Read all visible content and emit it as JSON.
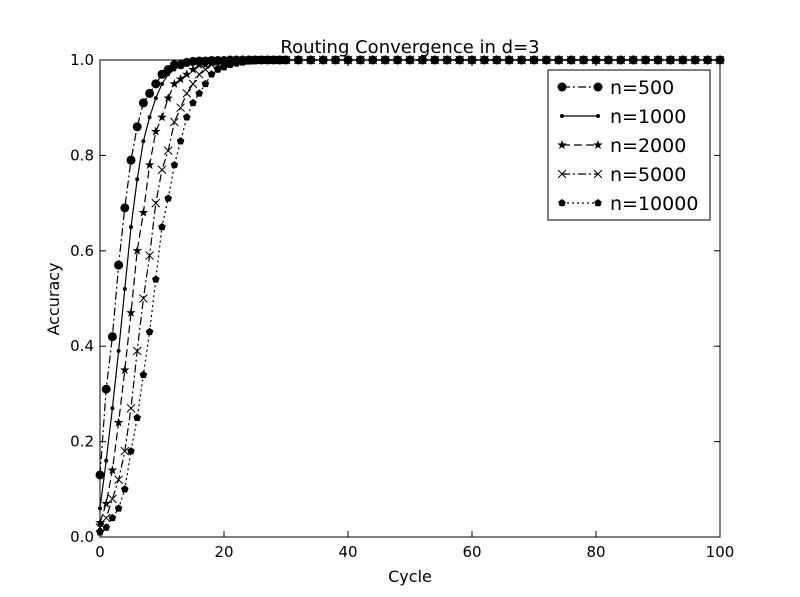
{
  "chart_data": {
    "type": "line",
    "title": "Routing Convergence in d=3",
    "xlabel": "Cycle",
    "ylabel": "Accuracy",
    "xlim": [
      0,
      100
    ],
    "ylim": [
      0.0,
      1.0
    ],
    "xticks": [
      "0",
      "20",
      "40",
      "60",
      "80",
      "100"
    ],
    "yticks": [
      "0.0",
      "0.2",
      "0.4",
      "0.6",
      "0.8",
      "1.0"
    ],
    "grid": false,
    "legend_position": "top-right",
    "series": [
      {
        "name": "n=500",
        "marker": "circle",
        "line_style": "dash-dot",
        "x": [
          0,
          1,
          2,
          3,
          4,
          5,
          6,
          7,
          8,
          9,
          10,
          11,
          12,
          13,
          14,
          15,
          16,
          17,
          18,
          19,
          20,
          21,
          22,
          23,
          24,
          25,
          26,
          27,
          28,
          29,
          30,
          32,
          34,
          36,
          38,
          40,
          42,
          44,
          46,
          48,
          50,
          52,
          54,
          56,
          58,
          60,
          62,
          64,
          66,
          68,
          70,
          72,
          74,
          76,
          78,
          80,
          82,
          84,
          86,
          88,
          90,
          92,
          94,
          96,
          98,
          100
        ],
        "y": [
          0.13,
          0.31,
          0.42,
          0.57,
          0.69,
          0.79,
          0.86,
          0.91,
          0.93,
          0.95,
          0.97,
          0.98,
          0.99,
          0.99,
          0.995,
          0.997,
          0.998,
          0.998,
          0.999,
          0.999,
          0.999,
          1.0,
          1.0,
          1.0,
          1.0,
          1.0,
          1.0,
          1.0,
          1.0,
          1.0,
          1.0,
          1.0,
          1.0,
          1.0,
          1.0,
          1.0,
          1.0,
          1.0,
          1.0,
          1.0,
          1.0,
          1.0,
          1.0,
          1.0,
          1.0,
          1.0,
          1.0,
          1.0,
          1.0,
          1.0,
          1.0,
          1.0,
          1.0,
          1.0,
          1.0,
          1.0,
          1.0,
          1.0,
          1.0,
          1.0,
          1.0,
          1.0,
          1.0,
          1.0,
          1.0,
          1.0
        ]
      },
      {
        "name": "n=1000",
        "marker": "point",
        "line_style": "solid",
        "x": [
          0,
          1,
          2,
          3,
          4,
          5,
          6,
          7,
          8,
          9,
          10,
          11,
          12,
          13,
          14,
          15,
          16,
          17,
          18,
          19,
          20,
          21,
          22,
          23,
          24,
          25,
          26,
          27,
          28,
          29,
          30,
          32,
          34,
          36,
          38,
          40,
          42,
          44,
          46,
          48,
          50,
          52,
          54,
          56,
          58,
          60,
          62,
          64,
          66,
          68,
          70,
          72,
          74,
          76,
          78,
          80,
          82,
          84,
          86,
          88,
          90,
          92,
          94,
          96,
          98,
          100
        ],
        "y": [
          0.06,
          0.16,
          0.27,
          0.39,
          0.52,
          0.65,
          0.75,
          0.83,
          0.88,
          0.92,
          0.95,
          0.97,
          0.98,
          0.99,
          0.99,
          0.995,
          0.997,
          0.998,
          0.999,
          0.999,
          1.0,
          1.0,
          1.0,
          1.0,
          1.0,
          1.0,
          1.0,
          1.0,
          1.0,
          1.0,
          1.0,
          1.0,
          1.0,
          1.0,
          1.0,
          1.0,
          1.0,
          1.0,
          1.0,
          1.0,
          1.0,
          1.0,
          1.0,
          1.0,
          1.0,
          1.0,
          1.0,
          1.0,
          1.0,
          1.0,
          1.0,
          1.0,
          1.0,
          1.0,
          1.0,
          1.0,
          1.0,
          1.0,
          1.0,
          1.0,
          1.0,
          1.0,
          1.0,
          1.0,
          1.0,
          1.0
        ]
      },
      {
        "name": "n=2000",
        "marker": "star",
        "line_style": "dashed",
        "x": [
          0,
          1,
          2,
          3,
          4,
          5,
          6,
          7,
          8,
          9,
          10,
          11,
          12,
          13,
          14,
          15,
          16,
          17,
          18,
          19,
          20,
          21,
          22,
          23,
          24,
          25,
          26,
          27,
          28,
          29,
          30,
          32,
          34,
          36,
          38,
          40,
          42,
          44,
          46,
          48,
          50,
          52,
          54,
          56,
          58,
          60,
          62,
          64,
          66,
          68,
          70,
          72,
          74,
          76,
          78,
          80,
          82,
          84,
          86,
          88,
          90,
          92,
          94,
          96,
          98,
          100
        ],
        "y": [
          0.03,
          0.07,
          0.14,
          0.24,
          0.35,
          0.47,
          0.6,
          0.68,
          0.78,
          0.85,
          0.88,
          0.92,
          0.95,
          0.96,
          0.97,
          0.98,
          0.99,
          0.99,
          0.995,
          0.997,
          0.998,
          0.999,
          0.999,
          1.0,
          1.0,
          1.0,
          1.0,
          1.0,
          1.0,
          1.0,
          1.0,
          1.0,
          1.0,
          1.0,
          1.0,
          1.0,
          1.0,
          1.0,
          1.0,
          1.0,
          1.0,
          1.0,
          1.0,
          1.0,
          1.0,
          1.0,
          1.0,
          1.0,
          1.0,
          1.0,
          1.0,
          1.0,
          1.0,
          1.0,
          1.0,
          1.0,
          1.0,
          1.0,
          1.0,
          1.0,
          1.0,
          1.0,
          1.0,
          1.0,
          1.0,
          1.0
        ]
      },
      {
        "name": "n=5000",
        "marker": "x",
        "line_style": "dash-dot",
        "x": [
          0,
          1,
          2,
          3,
          4,
          5,
          6,
          7,
          8,
          9,
          10,
          11,
          12,
          13,
          14,
          15,
          16,
          17,
          18,
          19,
          20,
          21,
          22,
          23,
          24,
          25,
          26,
          27,
          28,
          29,
          30,
          32,
          34,
          36,
          38,
          40,
          42,
          44,
          46,
          48,
          50,
          52,
          54,
          56,
          58,
          60,
          62,
          64,
          66,
          68,
          70,
          72,
          74,
          76,
          78,
          80,
          82,
          84,
          86,
          88,
          90,
          92,
          94,
          96,
          98,
          100
        ],
        "y": [
          0.02,
          0.04,
          0.08,
          0.12,
          0.18,
          0.27,
          0.39,
          0.5,
          0.59,
          0.7,
          0.77,
          0.81,
          0.87,
          0.9,
          0.93,
          0.95,
          0.97,
          0.98,
          0.99,
          0.99,
          0.995,
          0.997,
          0.998,
          0.999,
          0.999,
          1.0,
          1.0,
          1.0,
          1.0,
          1.0,
          1.0,
          1.0,
          1.0,
          1.0,
          1.0,
          1.0,
          1.0,
          1.0,
          1.0,
          1.0,
          1.0,
          1.0,
          1.0,
          1.0,
          1.0,
          1.0,
          1.0,
          1.0,
          1.0,
          1.0,
          1.0,
          1.0,
          1.0,
          1.0,
          1.0,
          1.0,
          1.0,
          1.0,
          1.0,
          1.0,
          1.0,
          1.0,
          1.0,
          1.0,
          1.0,
          1.0
        ]
      },
      {
        "name": "n=10000",
        "marker": "pentagon",
        "line_style": "dotted",
        "x": [
          0,
          1,
          2,
          3,
          4,
          5,
          6,
          7,
          8,
          9,
          10,
          11,
          12,
          13,
          14,
          15,
          16,
          17,
          18,
          19,
          20,
          21,
          22,
          23,
          24,
          25,
          26,
          27,
          28,
          29,
          30,
          32,
          34,
          36,
          38,
          40,
          42,
          44,
          46,
          48,
          50,
          52,
          54,
          56,
          58,
          60,
          62,
          64,
          66,
          68,
          70,
          72,
          74,
          76,
          78,
          80,
          82,
          84,
          86,
          88,
          90,
          92,
          94,
          96,
          98,
          100
        ],
        "y": [
          0.01,
          0.02,
          0.04,
          0.06,
          0.1,
          0.18,
          0.25,
          0.34,
          0.43,
          0.54,
          0.65,
          0.71,
          0.78,
          0.83,
          0.88,
          0.91,
          0.93,
          0.95,
          0.97,
          0.98,
          0.985,
          0.99,
          0.993,
          0.995,
          0.997,
          0.998,
          0.999,
          0.999,
          1.0,
          1.0,
          1.0,
          1.0,
          1.0,
          1.0,
          1.0,
          1.0,
          1.0,
          1.0,
          1.0,
          1.0,
          1.0,
          1.0,
          1.0,
          1.0,
          1.0,
          1.0,
          1.0,
          1.0,
          1.0,
          1.0,
          1.0,
          1.0,
          1.0,
          1.0,
          1.0,
          1.0,
          1.0,
          1.0,
          1.0,
          1.0,
          1.0,
          1.0,
          1.0,
          1.0,
          1.0,
          1.0
        ]
      }
    ]
  }
}
